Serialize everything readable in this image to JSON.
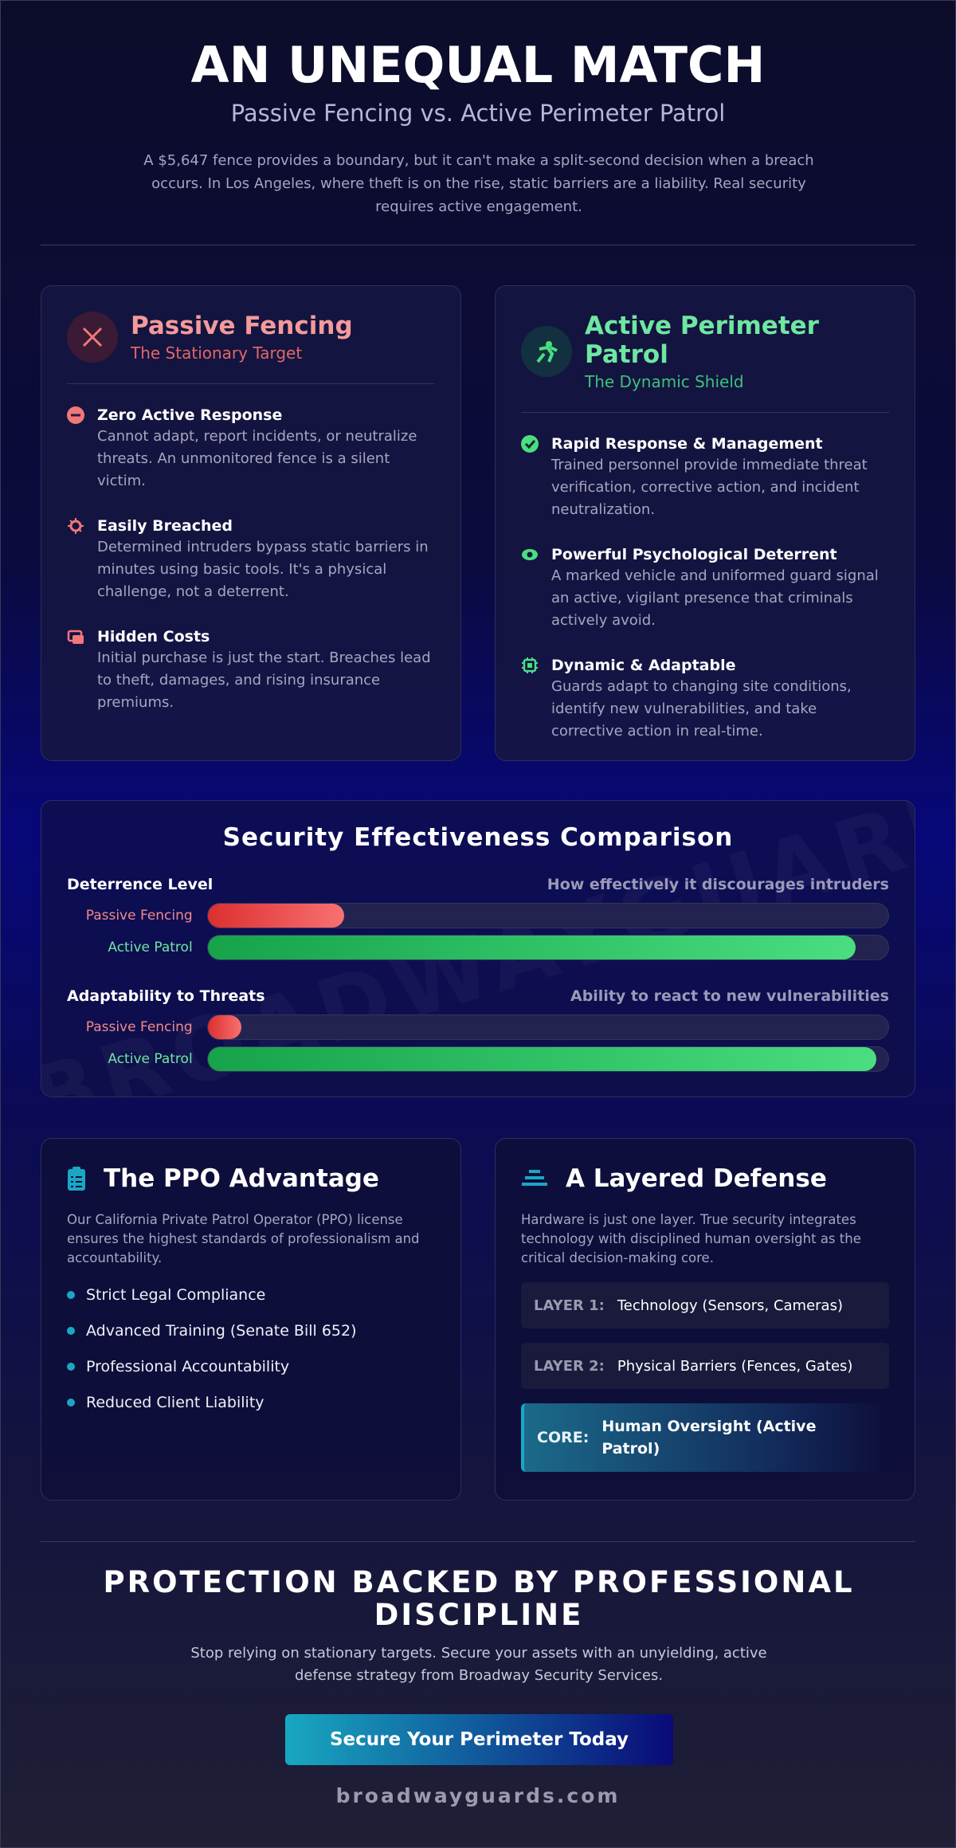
{
  "header": {
    "title": "AN UNEQUAL MATCH",
    "subtitle": "Passive Fencing vs. Active Perimeter Patrol",
    "intro": "A $5,647 fence provides a boundary, but it can't make a split-second decision when a breach occurs. In Los Angeles, where theft is on the rise, static barriers are a liability. Real security requires active engagement."
  },
  "passive": {
    "title": "Passive Fencing",
    "subtitle": "The Stationary Target",
    "items": [
      {
        "title": "Zero Active Response",
        "text": "Cannot adapt, report incidents, or neutralize threats. An unmonitored fence is a silent victim."
      },
      {
        "title": "Easily Breached",
        "text": "Determined intruders bypass static barriers in minutes using basic tools. It's a physical challenge, not a deterrent."
      },
      {
        "title": "Hidden Costs",
        "text": "Initial purchase is just the start. Breaches lead to theft, damages, and rising insurance premiums."
      }
    ]
  },
  "active": {
    "title": "Active Perimeter Patrol",
    "subtitle": "The Dynamic Shield",
    "items": [
      {
        "title": "Rapid Response & Management",
        "text": "Trained personnel provide immediate threat verification, corrective action, and incident neutralization."
      },
      {
        "title": "Powerful Psychological Deterrent",
        "text": "A marked vehicle and uniformed guard signal an active, vigilant presence that criminals actively avoid."
      },
      {
        "title": "Dynamic & Adaptable",
        "text": "Guards adapt to changing site conditions, identify new vulnerabilities, and take corrective action in real-time."
      }
    ]
  },
  "comparison": {
    "title": "Security Effectiveness Comparison",
    "watermark": "BROADWAYGUARDS",
    "xlim": [
      0,
      100
    ],
    "metrics": [
      {
        "label": "Deterrence Level",
        "description": "How effectively it discourages intruders",
        "rows": [
          {
            "name": "Passive Fencing",
            "value": 20
          },
          {
            "name": "Active Patrol",
            "value": 95
          }
        ]
      },
      {
        "label": "Adaptability to Threats",
        "description": "Ability to react to new vulnerabilities",
        "rows": [
          {
            "name": "Passive Fencing",
            "value": 5
          },
          {
            "name": "Active Patrol",
            "value": 98
          }
        ]
      }
    ]
  },
  "ppo": {
    "title": "The PPO Advantage",
    "intro": "Our California Private Patrol Operator (PPO) license ensures the highest standards of professionalism and accountability.",
    "items": [
      "Strict Legal Compliance",
      "Advanced Training (Senate Bill 652)",
      "Professional Accountability",
      "Reduced Client Liability"
    ]
  },
  "layered": {
    "title": "A Layered Defense",
    "intro": "Hardware is just one layer. True security integrates technology with disciplined human oversight as the critical decision-making core.",
    "layers": [
      {
        "tag": "LAYER 1:",
        "label": "Technology (Sensors, Cameras)"
      },
      {
        "tag": "LAYER 2:",
        "label": "Physical Barriers (Fences, Gates)"
      },
      {
        "tag": "CORE:",
        "label": "Human Oversight (Active Patrol)"
      }
    ]
  },
  "footer": {
    "title": "PROTECTION BACKED BY PROFESSIONAL DISCIPLINE",
    "text": "Stop relying on stationary targets. Secure your assets with an unyielding, active defense strategy from Broadway Security Services.",
    "button": "Secure Your Perimeter Today",
    "domain": "broadwayguards.com"
  }
}
